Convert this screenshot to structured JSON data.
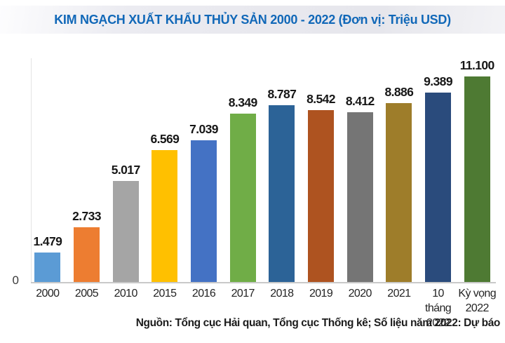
{
  "title": "KIM NGẠCH XUẤT KHẨU THỦY SẢN 2000 - 2022 (Đơn vị: Triệu USD)",
  "source_note": "Nguồn: Tổng cục Hải quan, Tổng cục Thống kê; Số liệu năm 2022: Dự báo",
  "y_axis": {
    "zero_label": "0"
  },
  "colors": {
    "title_blue": "#1168b8",
    "axis_gray": "#c9c9c9",
    "value_label": "#171717"
  },
  "chart_data": {
    "type": "bar",
    "title": "KIM NGẠCH XUẤT KHẨU THỦY SẢN 2000 - 2022",
    "unit_label": "Đơn vị: Triệu USD",
    "xlabel": "",
    "ylabel": "",
    "ylim": [
      0,
      11100
    ],
    "grid": false,
    "legend": "none",
    "categories": [
      "2000",
      "2005",
      "2010",
      "2015",
      "2016",
      "2017",
      "2018",
      "2019",
      "2020",
      "2021",
      "10 tháng 2022",
      "Kỳ vọng 2022"
    ],
    "category_lines": [
      [
        "2000"
      ],
      [
        "2005"
      ],
      [
        "2010"
      ],
      [
        "2015"
      ],
      [
        "2016"
      ],
      [
        "2017"
      ],
      [
        "2018"
      ],
      [
        "2019"
      ],
      [
        "2020"
      ],
      [
        "2021"
      ],
      [
        "10 tháng",
        "2022"
      ],
      [
        "Kỳ vọng",
        "2022"
      ]
    ],
    "values": [
      1479,
      2733,
      5017,
      6569,
      7039,
      8349,
      8787,
      8542,
      8412,
      8886,
      9389,
      11100
    ],
    "value_labels": [
      "1.479",
      "2.733",
      "5.017",
      "6.569",
      "7.039",
      "8.349",
      "8.787",
      "8.542",
      "8.412",
      "8.886",
      "9.389",
      "11.100"
    ],
    "bar_colors": [
      "#5b9bd5",
      "#ed7d31",
      "#a5a5a5",
      "#ffc000",
      "#4472c4",
      "#70ad47",
      "#2c6397",
      "#ae5320",
      "#757575",
      "#9e7d2a",
      "#2a4b7c",
      "#4e7a33"
    ]
  }
}
